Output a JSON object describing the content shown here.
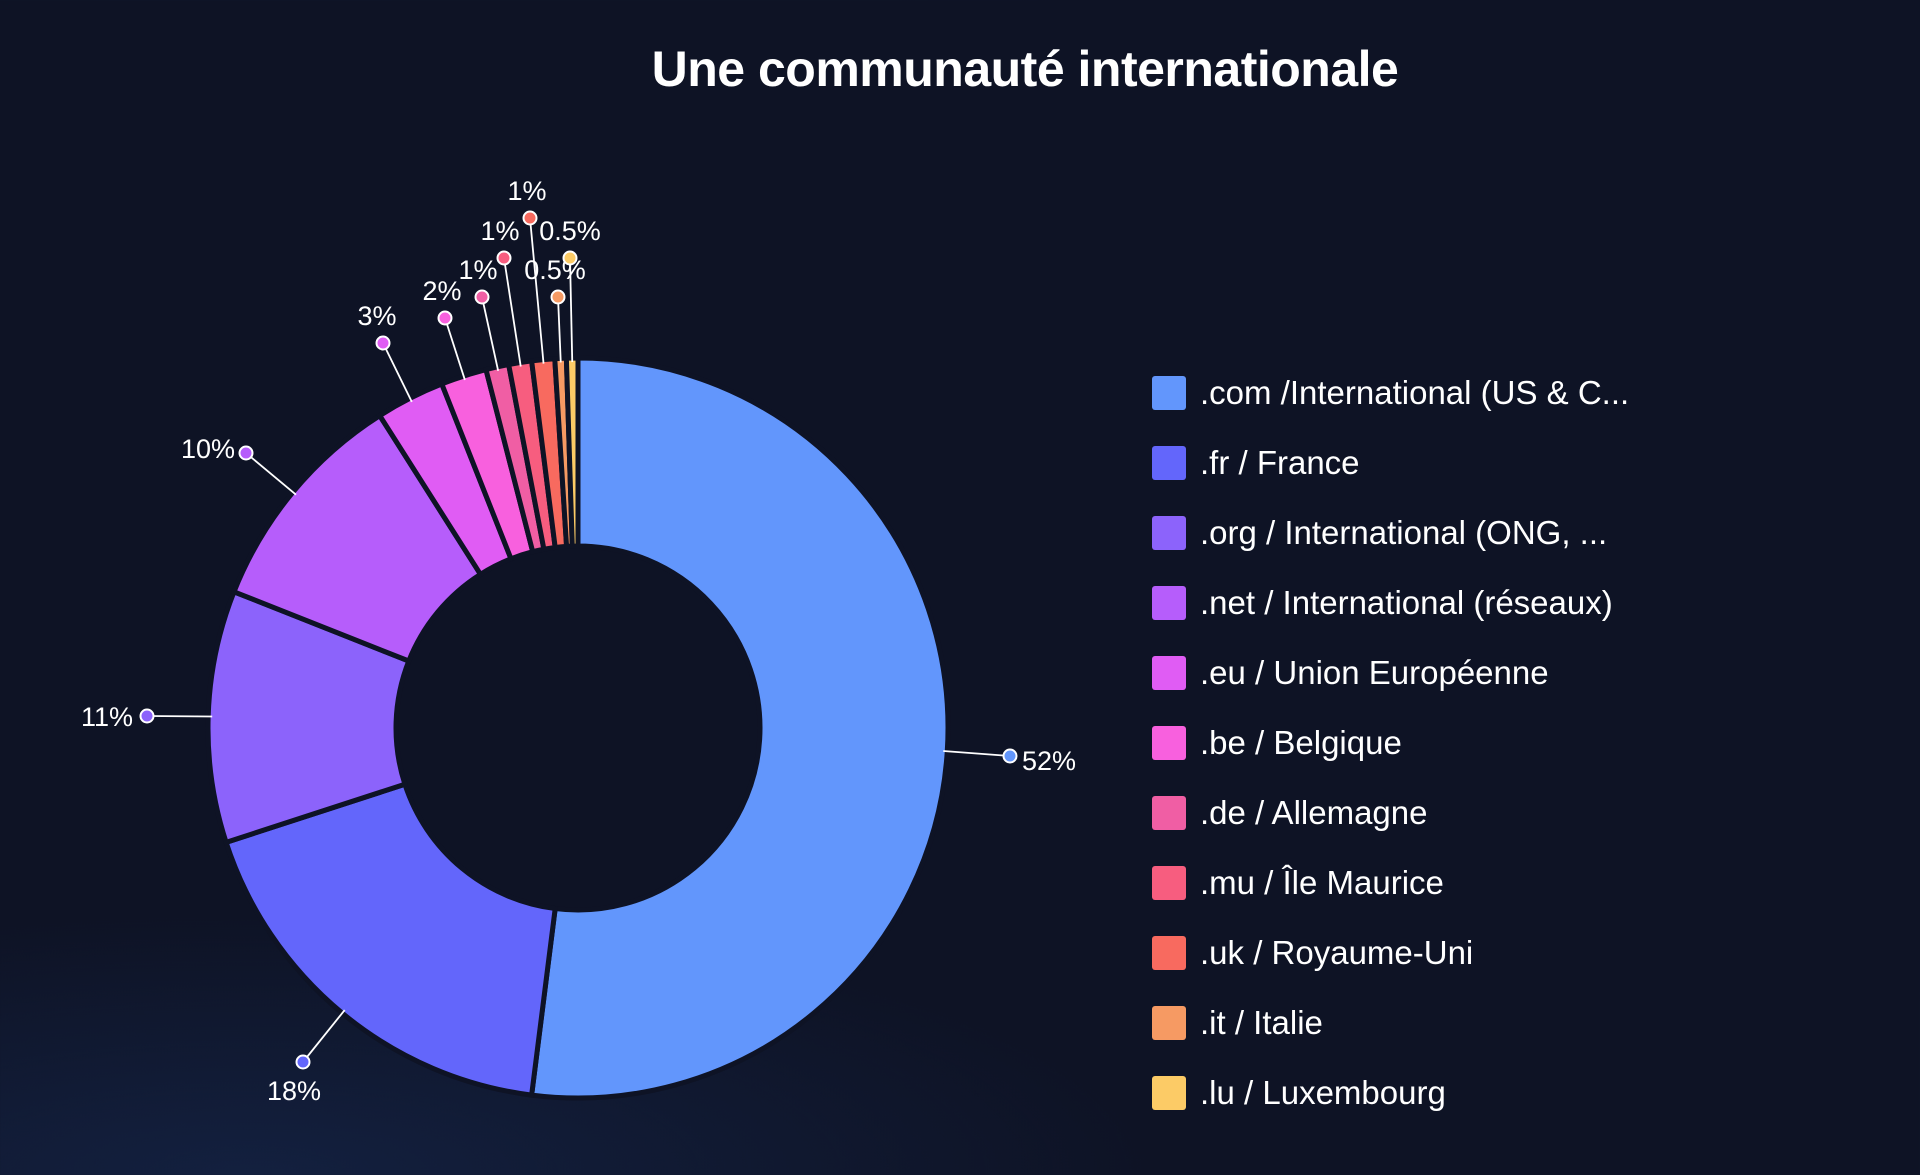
{
  "chart_data": {
    "type": "pie",
    "variant": "donut",
    "title": "Une communauté internationale",
    "categories": [
      ".com /International (US & C...",
      ".fr / France",
      ".org / International (ONG, ...",
      ".net / International (réseaux)",
      ".eu / Union Européenne",
      ".be / Belgique",
      ".de / Allemagne",
      ".mu / Île Maurice",
      ".uk / Royaume-Uni",
      ".it / Italie",
      ".lu / Luxembourg"
    ],
    "values": [
      52,
      18,
      11,
      10,
      3,
      2,
      1,
      1,
      1,
      0.5,
      0.5
    ],
    "data_labels": [
      "52%",
      "18%",
      "11%",
      "10%",
      "3%",
      "2%",
      "1%",
      "1%",
      "1%",
      "0.5%",
      "0.5%"
    ],
    "colors": [
      "#6296fc",
      "#6366fb",
      "#8c63fb",
      "#b65dfb",
      "#e05cf4",
      "#f860de",
      "#f05ea4",
      "#f75d7f",
      "#f86a5f",
      "#f69a63",
      "#fccb66"
    ],
    "legend_position": "right"
  }
}
